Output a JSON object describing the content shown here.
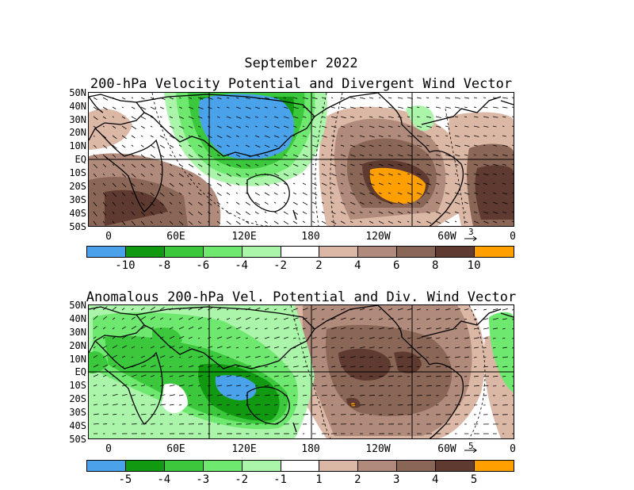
{
  "page_title": "September 2022",
  "panels": [
    {
      "title": "200-hPa Velocity Potential and Divergent Wind Vector",
      "ref_vector": "3",
      "colorbar": {
        "labels": [
          "-10",
          "-8",
          "-6",
          "-4",
          "-2",
          "2",
          "4",
          "6",
          "8",
          "10"
        ],
        "colors": [
          "#4aa3ea",
          "#119a11",
          "#3cc83c",
          "#6ee86e",
          "#aaf5aa",
          "#ffffff",
          "#dbb7a6",
          "#b08a7a",
          "#8a6657",
          "#5e3a30",
          "#ff9f00"
        ]
      }
    },
    {
      "title": "Anomalous 200-hPa Vel. Potential and Div. Wind Vector",
      "ref_vector": "5",
      "colorbar": {
        "labels": [
          "-5",
          "-4",
          "-3",
          "-2",
          "-1",
          "1",
          "2",
          "3",
          "4",
          "5"
        ],
        "colors": [
          "#4aa3ea",
          "#119a11",
          "#3cc83c",
          "#6ee86e",
          "#aaf5aa",
          "#ffffff",
          "#dbb7a6",
          "#b08a7a",
          "#8a6657",
          "#5e3a30",
          "#ff9f00"
        ]
      }
    }
  ],
  "axes": {
    "lat_labels": [
      "50N",
      "40N",
      "30N",
      "20N",
      "10N",
      "EQ",
      "10S",
      "20S",
      "30S",
      "40S",
      "50S"
    ],
    "lon_labels": [
      "0",
      "60E",
      "120E",
      "180",
      "120W",
      "60W",
      "0"
    ]
  }
}
